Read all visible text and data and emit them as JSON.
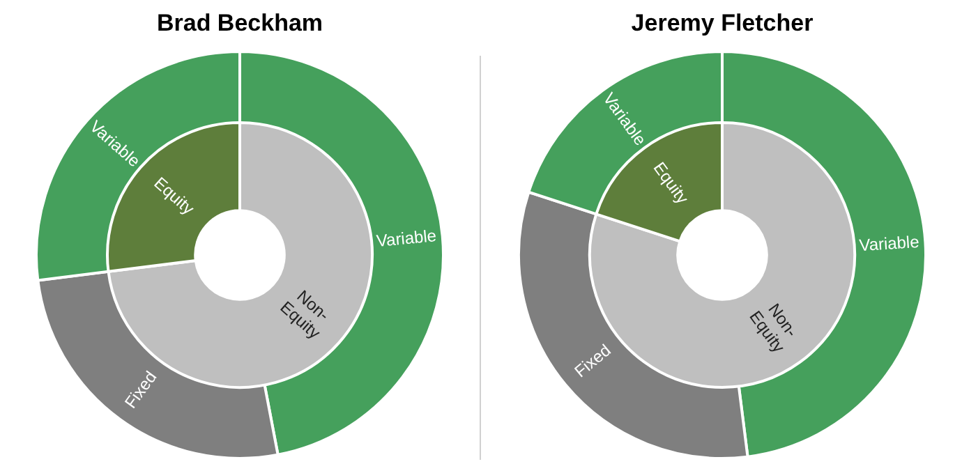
{
  "chart_data": [
    {
      "type": "donut",
      "title": "Brad Beckham",
      "categories": [
        "Variable",
        "Fixed",
        "Variable"
      ],
      "values": [
        47,
        26,
        27
      ],
      "colors": [
        "#45a05c",
        "#7f7f7f",
        "#45a05c"
      ]
    },
    {
      "type": "donut",
      "categories": [
        "Non-Equity",
        "Equity"
      ],
      "values": [
        73,
        27
      ],
      "colors": [
        "#bfbfbf",
        "#5e7e3b"
      ]
    },
    {
      "type": "donut",
      "title": "Jeremy Fletcher",
      "categories": [
        "Variable",
        "Fixed",
        "Variable"
      ],
      "values": [
        48,
        32,
        20
      ],
      "colors": [
        "#45a05c",
        "#7f7f7f",
        "#45a05c"
      ]
    },
    {
      "type": "donut",
      "categories": [
        "Non-Equity",
        "Equity"
      ],
      "values": [
        80,
        20
      ],
      "colors": [
        "#bfbfbf",
        "#5e7e3b"
      ]
    }
  ]
}
